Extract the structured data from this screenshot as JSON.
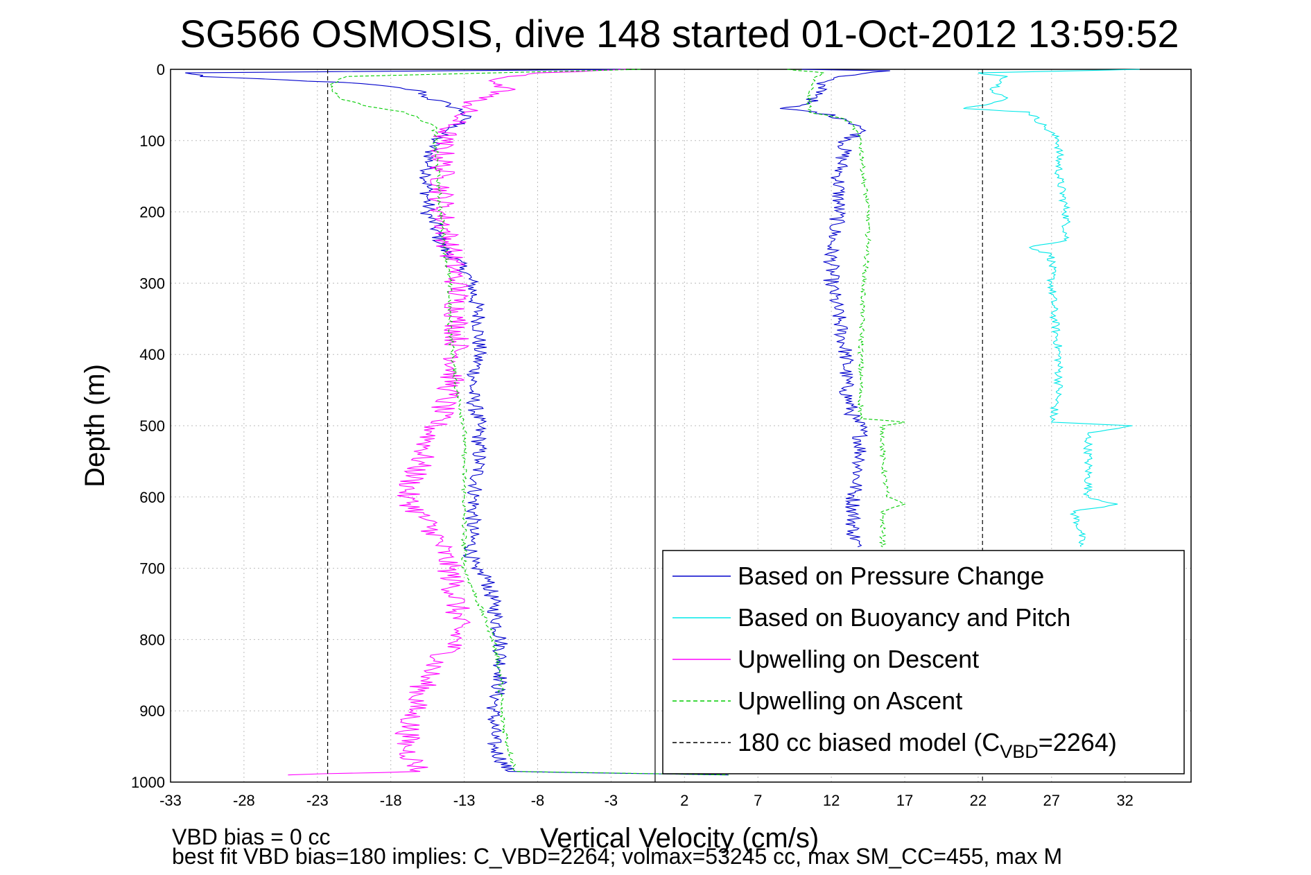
{
  "colors": {
    "pressure": "#0000cc",
    "buoyancy": "#00e8e8",
    "descent": "#ff00ff",
    "ascent": "#00cc00",
    "model": "#000000",
    "grid": "#bbbbbb"
  },
  "chart_data": {
    "type": "line",
    "title": "SG566 OSMOSIS, dive 148 started 01-Oct-2012 13:59:52",
    "xlabel": "Vertical Velocity (cm/s)",
    "ylabel": "Depth (m)",
    "xlim": [
      -33,
      36.5
    ],
    "ylim": [
      0,
      1000
    ],
    "y_reversed": true,
    "grid": true,
    "legend_position": "bottom-right",
    "xticks": [
      -33,
      -28,
      -23,
      -18,
      -13,
      -8,
      -3,
      2,
      7,
      12,
      17,
      22,
      27,
      32
    ],
    "xtick_labels": [
      "-33",
      "-28",
      "-23",
      "-18",
      "-13",
      "-8",
      "-3",
      "2",
      "7",
      "12",
      "17",
      "22",
      "27",
      "32"
    ],
    "yticks": [
      0,
      100,
      200,
      300,
      400,
      500,
      600,
      700,
      800,
      900,
      1000
    ],
    "ytick_labels": [
      "0",
      "100",
      "200",
      "300",
      "400",
      "500",
      "600",
      "700",
      "800",
      "900",
      "1000"
    ],
    "zero_line_x": 0,
    "legend": [
      {
        "label": "Based on Pressure Change",
        "key": "pressure",
        "dashed": false
      },
      {
        "label": "Based on Buoyancy and Pitch",
        "key": "buoyancy",
        "dashed": false
      },
      {
        "label": "Upwelling on Descent",
        "key": "descent",
        "dashed": false
      },
      {
        "label": "Upwelling on Ascent",
        "key": "ascent",
        "dashed": true
      },
      {
        "label_prefix": "180 cc biased model (C",
        "label_sub": "VBD",
        "label_suffix": "=2264)",
        "key": "model",
        "dashed": true
      }
    ],
    "series": [
      {
        "name": "Based on Pressure Change",
        "key": "pressure",
        "dashed": false,
        "noise": 0.55,
        "segments": [
          {
            "depth": [
              0,
              5,
              10,
              15,
              20,
              30,
              40,
              50,
              60,
              70,
              80,
              90,
              100,
              120,
              150,
              180,
              200,
              220,
              250,
              280,
              300,
              350,
              400,
              450,
              500,
              550,
              600,
              650,
              700,
              710,
              750,
              800,
              850,
              900,
              950,
              985,
              990
            ],
            "x": [
              -2,
              -32,
              -31,
              -25,
              -20,
              -16,
              -15.5,
              -14,
              -13,
              -13,
              -13.5,
              -14.5,
              -15,
              -15.3,
              -15.5,
              -15.5,
              -15.5,
              -15,
              -14.5,
              -13,
              -12.5,
              -12,
              -12,
              -12.5,
              -12,
              -12,
              -12.3,
              -12.5,
              -12.5,
              -11.5,
              -11,
              -10.5,
              -10.5,
              -11,
              -11,
              -10,
              5
            ]
          },
          {
            "depth": [
              0,
              2,
              10,
              20,
              30,
              40,
              50,
              55,
              60,
              70,
              80,
              90,
              100,
              150,
              200,
              250,
              300,
              350,
              400,
              450,
              490,
              500,
              550,
              600,
              650,
              670
            ],
            "x": [
              10,
              16,
              12.5,
              11,
              11.5,
              11,
              10,
              8.5,
              11,
              13,
              14,
              14,
              13,
              12.5,
              12.5,
              12,
              12,
              12.5,
              13,
              13,
              13.5,
              14,
              14,
              13.5,
              13.5,
              13.8
            ]
          }
        ]
      },
      {
        "name": "Based on Buoyancy and Pitch",
        "key": "buoyancy",
        "dashed": false,
        "noise": 0.3,
        "segments": [
          {
            "depth": [
              0,
              5,
              10,
              20,
              30,
              40,
              50,
              55,
              60,
              80,
              100,
              150,
              200,
              240,
              250,
              260,
              300,
              350,
              400,
              450,
              495,
              500,
              510,
              550,
              600,
              610,
              620,
              650,
              670
            ],
            "x": [
              33,
              22,
              24,
              23.5,
              23,
              24,
              22.5,
              21,
              25.5,
              26.5,
              27.5,
              27.5,
              28,
              28,
              25.5,
              27,
              27,
              27.2,
              27.5,
              27.5,
              27,
              32.5,
              29.5,
              29.5,
              29.5,
              31.5,
              28.5,
              29,
              29
            ]
          }
        ]
      },
      {
        "name": "Upwelling on Descent",
        "key": "descent",
        "dashed": false,
        "noise": 0.9,
        "segments": [
          {
            "depth": [
              0,
              5,
              10,
              20,
              30,
              40,
              50,
              60,
              70,
              80,
              100,
              150,
              200,
              250,
              300,
              350,
              400,
              450,
              500,
              550,
              600,
              650,
              700,
              750,
              800,
              850,
              900,
              950,
              985,
              990
            ],
            "x": [
              -2,
              -8,
              -10,
              -11,
              -10,
              -12,
              -12.5,
              -13,
              -13.5,
              -14,
              -14.5,
              -14.5,
              -14.5,
              -14,
              -13.5,
              -13.5,
              -13.5,
              -14,
              -15,
              -16,
              -17,
              -15,
              -14,
              -13.5,
              -13.5,
              -15.5,
              -16.5,
              -17,
              -16,
              -25
            ]
          }
        ]
      },
      {
        "name": "Upwelling on Ascent",
        "key": "ascent",
        "dashed": true,
        "noise": 0.18,
        "segments": [
          {
            "depth": [
              0,
              10,
              20,
              30,
              40,
              50,
              60,
              70,
              80,
              100,
              150,
              200,
              250,
              300,
              350,
              400,
              450,
              500,
              550,
              600,
              650,
              700,
              750,
              800,
              850,
              900,
              950,
              985,
              990
            ],
            "x": [
              -1,
              -21,
              -22,
              -22,
              -21.5,
              -20,
              -17,
              -16,
              -15,
              -15,
              -14.8,
              -14.6,
              -14.3,
              -14,
              -14,
              -13.8,
              -13.5,
              -13,
              -13,
              -13,
              -13,
              -13,
              -12,
              -11,
              -10.5,
              -10.5,
              -10,
              -9.5,
              5
            ]
          },
          {
            "depth": [
              0,
              5,
              10,
              30,
              50,
              60,
              70,
              80,
              100,
              150,
              200,
              250,
              300,
              400,
              490,
              495,
              500,
              550,
              600,
              610,
              620,
              650,
              670
            ],
            "x": [
              9,
              11.5,
              11,
              10.5,
              10.5,
              10.5,
              13,
              13.5,
              14,
              14.2,
              14.5,
              14.5,
              14.2,
              14,
              14,
              17,
              15.5,
              15.5,
              15.8,
              17,
              15.5,
              15.5,
              15.5
            ]
          }
        ]
      },
      {
        "name": "180 cc biased model (CVBD=2264)",
        "key": "model",
        "dashed": true,
        "noise": 0,
        "segments": [
          {
            "depth": [
              0,
              1000
            ],
            "x": [
              -22.3,
              -22.3
            ]
          },
          {
            "depth": [
              0,
              1000
            ],
            "x": [
              22.3,
              22.3
            ]
          }
        ]
      }
    ]
  },
  "footnotes": {
    "line1": "VBD bias = 0 cc",
    "line2": "best fit VBD bias=180 implies: C_VBD=2264; volmax=53245 cc, max SM_CC=455, max M"
  }
}
